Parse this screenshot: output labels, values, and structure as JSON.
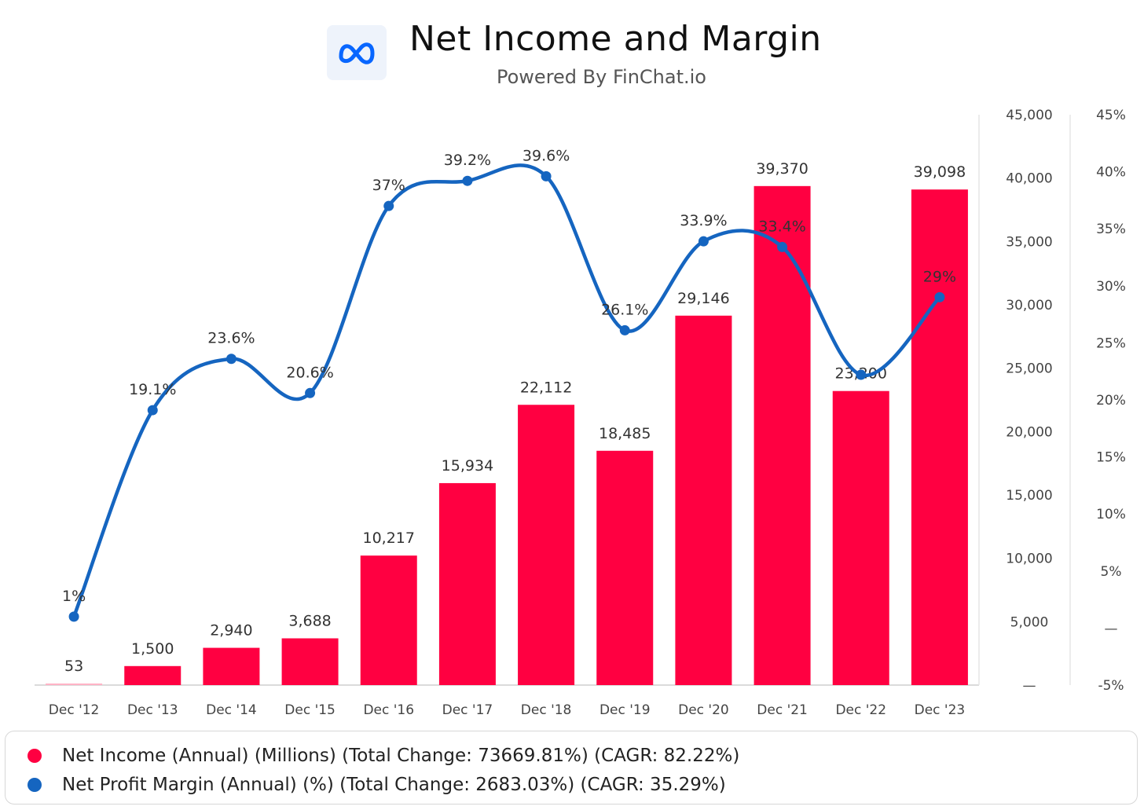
{
  "header": {
    "logo_icon": "meta-infinity-icon",
    "title": "Net Income and Margin",
    "subtitle": "Powered By FinChat.io"
  },
  "colors": {
    "bar": "#ff0041",
    "bar_small": "#ffb3c6",
    "line": "#1565c0",
    "axis_text": "#444444",
    "label_text": "#333333"
  },
  "chart_data": {
    "type": "bar",
    "categories": [
      "Dec '12",
      "Dec '13",
      "Dec '14",
      "Dec '15",
      "Dec '16",
      "Dec '17",
      "Dec '18",
      "Dec '19",
      "Dec '20",
      "Dec '21",
      "Dec '22",
      "Dec '23"
    ],
    "series": [
      {
        "name": "Net Income (Annual) (Millions) (Total Change: 73669.81%) (CAGR: 82.22%)",
        "type": "bar",
        "axis": "left",
        "values": [
          53,
          1500,
          2940,
          3688,
          10217,
          15934,
          22112,
          18485,
          29146,
          39370,
          23200,
          39098
        ],
        "labels": [
          "53",
          "1,500",
          "2,940",
          "3,688",
          "10,217",
          "15,934",
          "22,112",
          "18,485",
          "29,146",
          "39,370",
          "23,200",
          "39,098"
        ]
      },
      {
        "name": "Net Profit Margin (Annual) (%) (Total Change: 2683.03%) (CAGR: 35.29%)",
        "type": "line",
        "axis": "right",
        "values": [
          1,
          19.1,
          23.6,
          20.6,
          37,
          39.2,
          39.6,
          26.1,
          33.9,
          33.4,
          22.2,
          29
        ],
        "labels": [
          "1%",
          "19.1%",
          "23.6%",
          "20.6%",
          "37%",
          "39.2%",
          "39.6%",
          "26.1%",
          "33.9%",
          "33.4%",
          "",
          "29%"
        ]
      }
    ],
    "y_left": {
      "range": [
        0,
        45000
      ],
      "ticks": [
        0,
        5000,
        10000,
        15000,
        20000,
        25000,
        30000,
        35000,
        40000,
        45000
      ],
      "tick_labels": [
        "—",
        "5,000",
        "10,000",
        "15,000",
        "20,000",
        "25,000",
        "30,000",
        "35,000",
        "40,000",
        "45,000"
      ]
    },
    "y_right": {
      "range": [
        -5,
        45
      ],
      "ticks": [
        -5,
        0,
        5,
        10,
        15,
        20,
        25,
        30,
        35,
        40,
        45
      ],
      "tick_labels": [
        "-5%",
        "—",
        "5%",
        "10%",
        "15%",
        "20%",
        "25%",
        "30%",
        "35%",
        "40%",
        "45%"
      ]
    },
    "grid": false,
    "legend_position": "bottom"
  },
  "legend": [
    {
      "text": "Net Income (Annual) (Millions) (Total Change: 73669.81%) (CAGR: 82.22%)",
      "color": "#ff0041"
    },
    {
      "text": "Net Profit Margin (Annual) (%) (Total Change: 2683.03%) (CAGR: 35.29%)",
      "color": "#1565c0"
    }
  ]
}
